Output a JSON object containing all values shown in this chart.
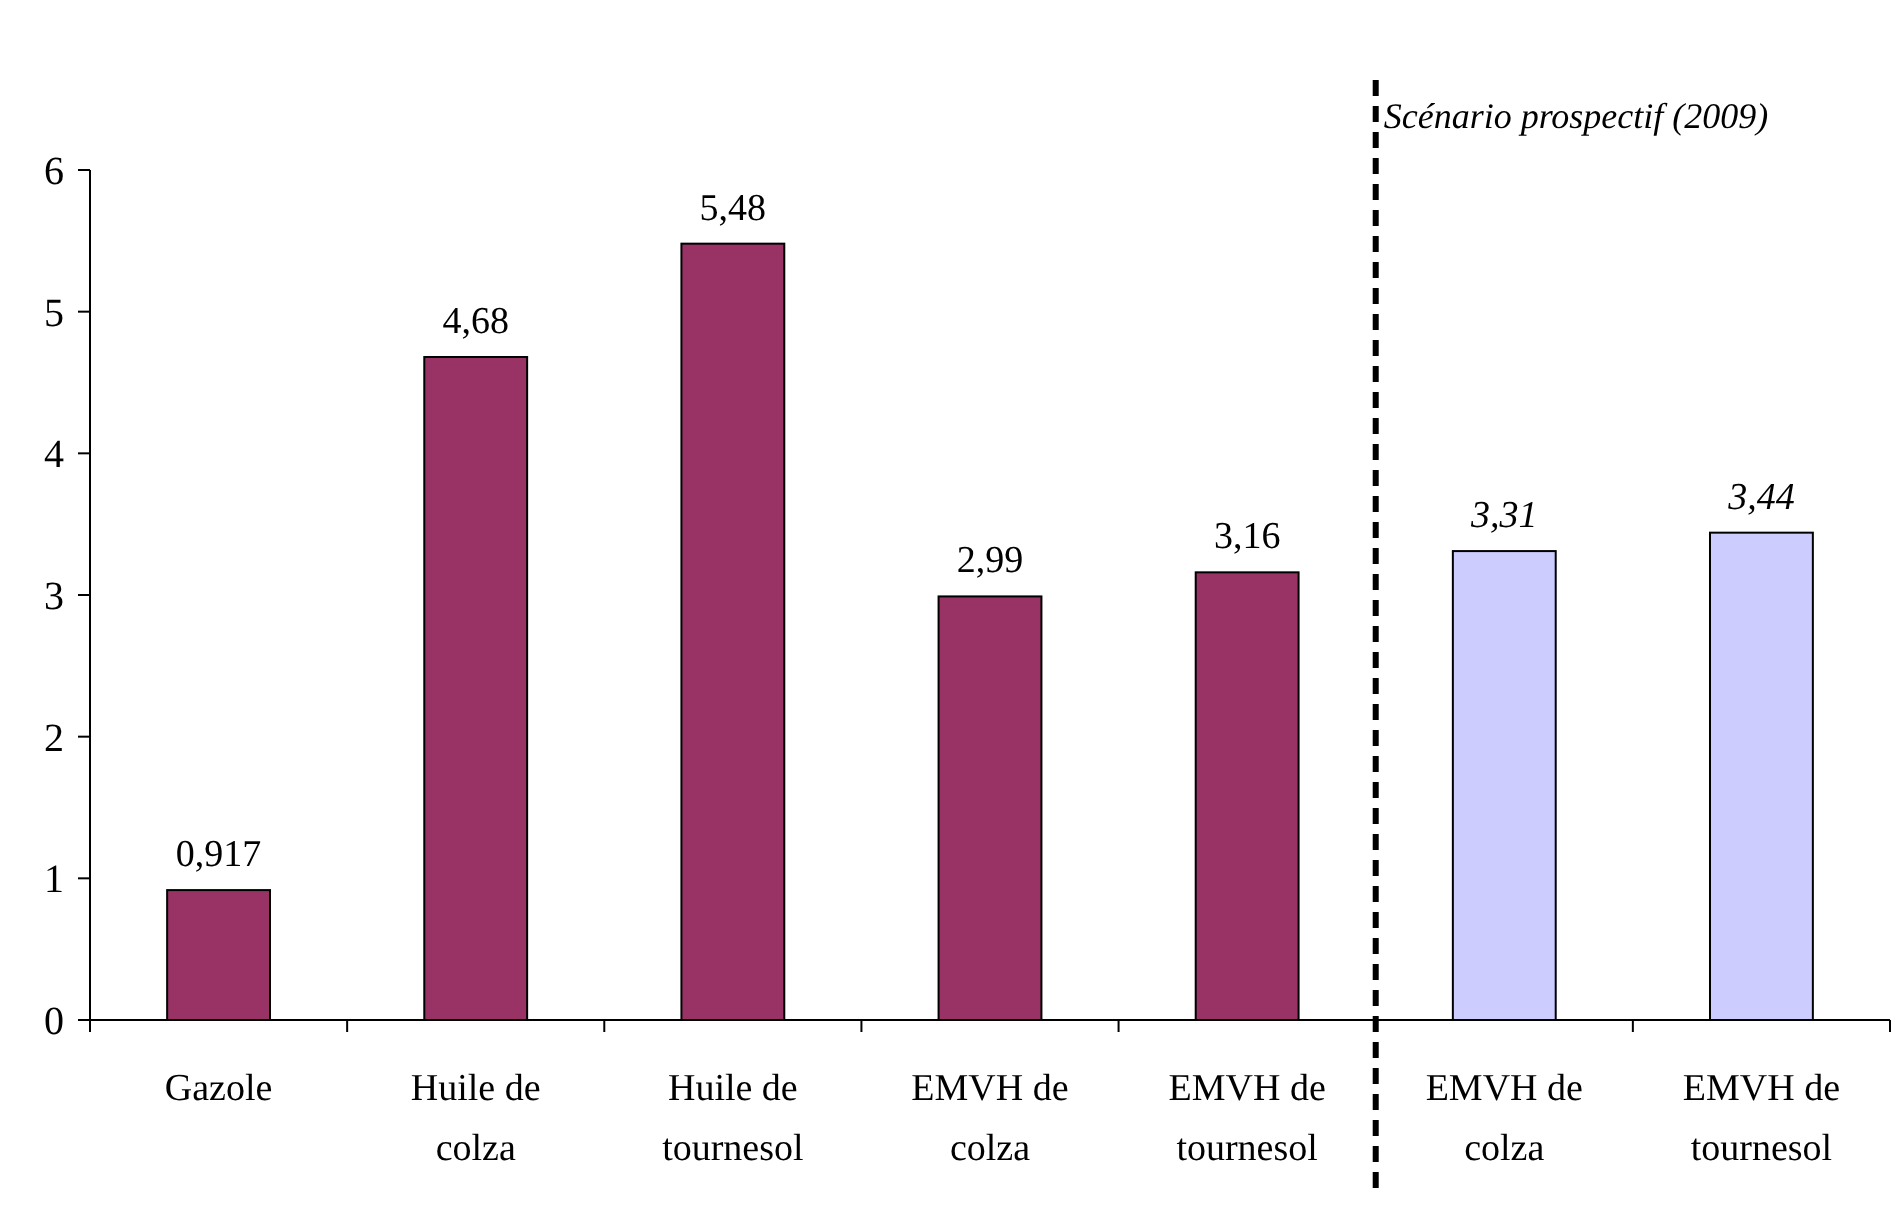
{
  "chart_data": {
    "type": "bar",
    "categories": [
      "Gazole",
      "Huile de colza",
      "Huile de tournesol",
      "EMVH de colza",
      "EMVH de tournesol",
      "EMVH de colza",
      "EMVH de tournesol"
    ],
    "values": [
      0.917,
      4.68,
      5.48,
      2.99,
      3.16,
      3.31,
      3.44
    ],
    "colors": [
      "#993366",
      "#993366",
      "#993366",
      "#993366",
      "#993366",
      "#ccccff",
      "#ccccff"
    ],
    "value_labels": [
      "0,917",
      "4,68",
      "5,48",
      "2,99",
      "3,16",
      "3,31",
      "3,44"
    ],
    "ylim": [
      0,
      6
    ],
    "yticks": [
      0,
      1,
      2,
      3,
      4,
      5,
      6
    ],
    "grid": false,
    "annotations": [
      "Scénario prospectif (2009)"
    ]
  }
}
